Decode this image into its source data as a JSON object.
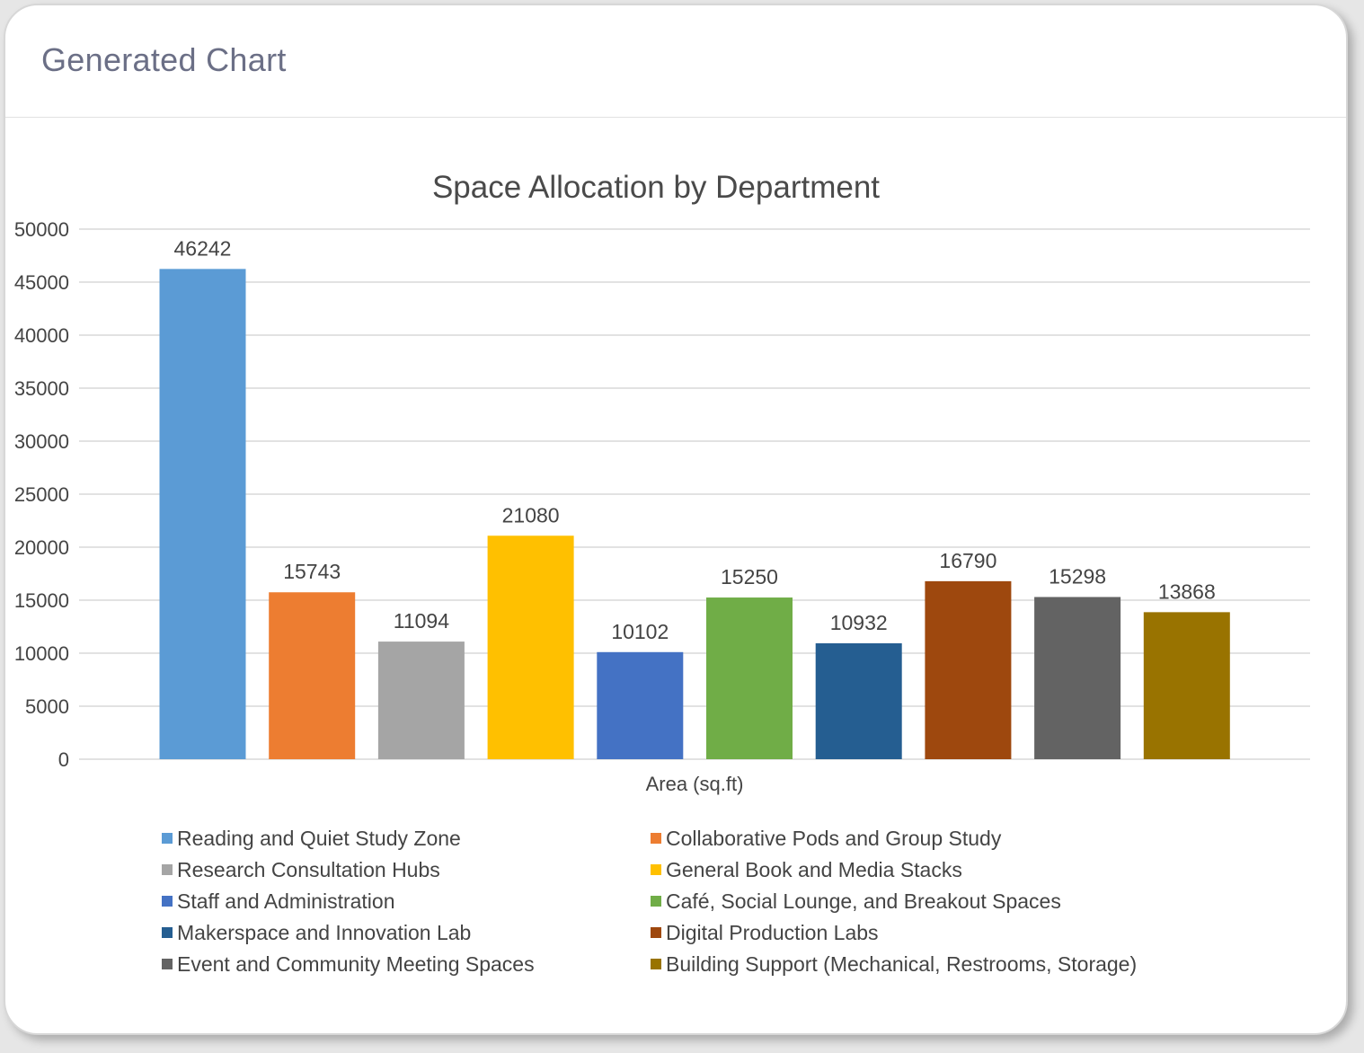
{
  "header": {
    "title": "Generated Chart"
  },
  "chart_data": {
    "type": "bar",
    "title": "Space Allocation by Department",
    "xlabel": "Area (sq.ft)",
    "ylabel": "",
    "ylim": [
      0,
      50000
    ],
    "yticks": [
      0,
      5000,
      10000,
      15000,
      20000,
      25000,
      30000,
      35000,
      40000,
      45000,
      50000
    ],
    "grid": true,
    "legend_position": "bottom",
    "data_labels": true,
    "series": [
      {
        "name": "Reading and Quiet Study Zone",
        "value": 46242,
        "color": "#5b9bd5"
      },
      {
        "name": "Collaborative Pods and Group Study",
        "value": 15743,
        "color": "#ed7d31"
      },
      {
        "name": "Research Consultation Hubs",
        "value": 11094,
        "color": "#a5a5a5"
      },
      {
        "name": "General Book and Media Stacks",
        "value": 21080,
        "color": "#ffc000"
      },
      {
        "name": "Staff and Administration",
        "value": 10102,
        "color": "#4472c4"
      },
      {
        "name": "Café, Social Lounge, and Breakout Spaces",
        "value": 15250,
        "color": "#70ad47"
      },
      {
        "name": "Makerspace and Innovation Lab",
        "value": 10932,
        "color": "#255e91"
      },
      {
        "name": "Digital Production Labs",
        "value": 16790,
        "color": "#9e480e"
      },
      {
        "name": "Event and Community Meeting Spaces",
        "value": 15298,
        "color": "#636363"
      },
      {
        "name": "Building Support (Mechanical, Restrooms, Storage)",
        "value": 13868,
        "color": "#997300"
      }
    ]
  }
}
